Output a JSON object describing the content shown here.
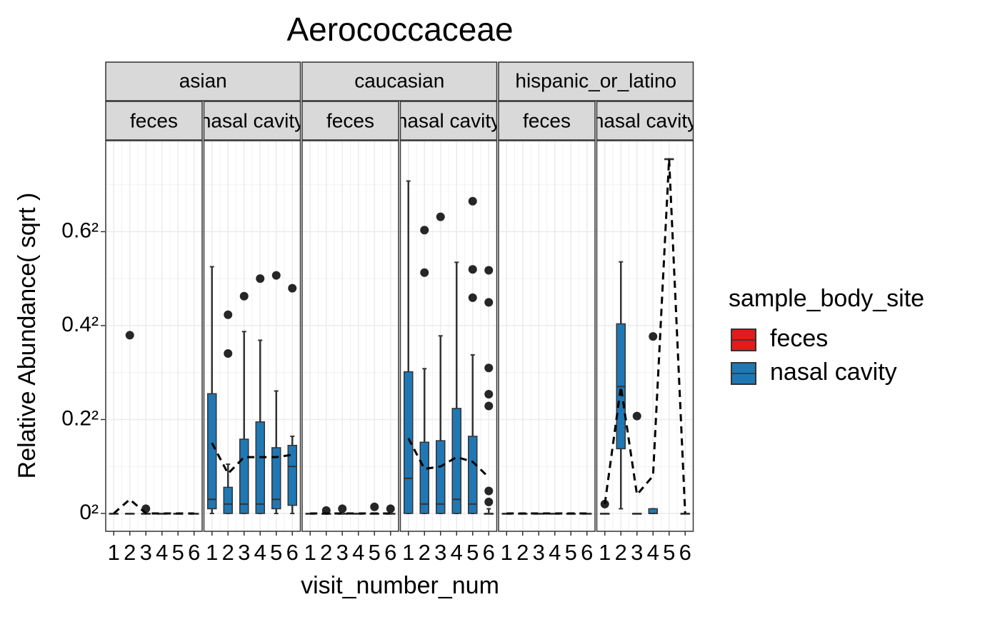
{
  "chart_data": {
    "type": "box",
    "title": "Aerococcaceae",
    "x_label": "visit_number_num",
    "y_label": "Relative Abundance( sqrt )",
    "legend_title": "sample_body_site",
    "y_scale": "sqrt",
    "grid": true,
    "legend_position": "right",
    "line_style": "dashed",
    "x": [
      1,
      2,
      3,
      4,
      5,
      6
    ],
    "xlim": [
      0.5,
      6.5
    ],
    "xticks": [
      1,
      2,
      3,
      4,
      5,
      6
    ],
    "ylim": [
      0,
      0.63
    ],
    "yticks": [
      {
        "value": 0,
        "label": "0²"
      },
      {
        "value": 0.04,
        "label": "0.2²"
      },
      {
        "value": 0.16,
        "label": "0.4²"
      },
      {
        "value": 0.36,
        "label": "0.6²"
      }
    ],
    "groups": [
      "asian",
      "caucasian",
      "hispanic_or_latino"
    ],
    "series": [
      {
        "name": "feces",
        "color": "#e31a1c"
      },
      {
        "name": "nasal cavity",
        "color": "#1f78b4"
      }
    ],
    "panels": [
      {
        "group": "asian",
        "site": "feces",
        "boxes": [
          [
            0,
            0,
            0,
            0,
            0
          ],
          [
            0,
            0,
            0,
            0,
            0
          ],
          [
            0,
            0,
            0,
            0,
            0
          ],
          [
            0,
            0,
            0,
            0,
            0
          ],
          [
            0,
            0,
            0,
            0,
            0
          ],
          [
            0,
            0,
            0,
            0,
            0
          ]
        ],
        "outliers": [
          [],
          [
            0.144
          ],
          [
            0.0001
          ],
          [],
          [],
          []
        ],
        "means": [
          0,
          0.0009,
          0,
          0,
          0,
          0
        ]
      },
      {
        "group": "asian",
        "site": "nasal cavity",
        "boxes": [
          [
            0,
            0.0001,
            0.0009,
            0.065,
            0.276
          ],
          [
            0,
            0,
            0.0004,
            0.0031,
            0.011
          ],
          [
            0,
            0,
            0.0004,
            0.025,
            0.15
          ],
          [
            0,
            0,
            0.0004,
            0.038,
            0.136
          ],
          [
            0,
            0.0001,
            0.0009,
            0.0196,
            0.068
          ],
          [
            0,
            0.0003,
            0.01,
            0.021,
            0.027
          ]
        ],
        "outliers": [
          [],
          [
            0.116,
            0.179
          ],
          [
            0.214
          ],
          [
            0.25
          ],
          [
            0.257
          ],
          [
            0.23
          ]
        ],
        "means": [
          0.0225,
          0.0072,
          0.0144,
          0.0144,
          0.0144,
          0.0156
        ]
      },
      {
        "group": "caucasian",
        "site": "feces",
        "boxes": [
          [
            0,
            0,
            0,
            0,
            0
          ],
          [
            0,
            0,
            0,
            0,
            0
          ],
          [
            0,
            0,
            0,
            0,
            0
          ],
          [
            0,
            0,
            0,
            0,
            0
          ],
          [
            0,
            0,
            0,
            0,
            0
          ],
          [
            0,
            0,
            0,
            0,
            0
          ]
        ],
        "outliers": [
          [],
          [
            4e-05
          ],
          [
            0.0001
          ],
          [],
          [
            0.0002
          ],
          [
            0.0001
          ]
        ],
        "means": [
          0,
          0,
          0,
          0,
          0,
          0
        ]
      },
      {
        "group": "caucasian",
        "site": "nasal cavity",
        "boxes": [
          [
            0,
            0,
            0.0056,
            0.091,
            0.501
          ],
          [
            0,
            0,
            0.0004,
            0.023,
            0.095
          ],
          [
            0,
            0,
            0.0004,
            0.024,
            0.143
          ],
          [
            0,
            0,
            0.0009,
            0.05,
            0.286
          ],
          [
            0,
            0,
            0.0004,
            0.027,
            0.114
          ],
          [
            0,
            0,
            0,
            0,
            0.0001
          ]
        ],
        "outliers": [
          [],
          [
            0.263,
            0.364
          ],
          [
            0.399
          ],
          [],
          [
            0.442,
            0.27,
            0.211
          ],
          [
            0.268,
            0.202,
            0.096,
            0.0645,
            0.0524,
            0.0023,
            0.0006
          ]
        ],
        "means": [
          0.0256,
          0.009,
          0.01,
          0.0144,
          0.0121,
          0.0059
        ]
      },
      {
        "group": "hispanic_or_latino",
        "site": "feces",
        "boxes": [
          [
            0,
            0,
            0,
            0,
            0
          ],
          [
            0,
            0,
            0,
            0,
            0
          ],
          [
            0,
            0,
            0,
            0,
            0
          ],
          [
            0,
            0,
            0,
            0,
            0
          ],
          [
            0,
            0,
            0,
            0,
            0
          ],
          [
            0,
            0,
            0,
            0,
            0
          ]
        ],
        "outliers": [
          [],
          [],
          [],
          [],
          [],
          []
        ],
        "means": [
          0,
          0,
          0,
          0,
          0,
          0
        ]
      },
      {
        "group": "hispanic_or_latino",
        "site": "nasal cavity",
        "boxes": [
          [
            0,
            0,
            0,
            0,
            0
          ],
          [
            0.0001,
            0.019,
            0.073,
            0.163,
            0.287
          ],
          [
            0,
            0,
            0,
            0,
            0
          ],
          [
            0,
            0,
            0,
            0.0001,
            0.0001
          ],
          [
            0.57,
            0.57,
            0.57,
            0.57,
            0.57
          ],
          [
            0,
            0,
            0,
            0,
            0
          ]
        ],
        "outliers": [
          [
            0.0004
          ],
          [],
          [
            0.043
          ],
          [
            0.142
          ],
          [],
          []
        ],
        "means": [
          0.0004,
          0.073,
          0.0016,
          0.0064,
          0.57,
          0
        ]
      }
    ]
  }
}
